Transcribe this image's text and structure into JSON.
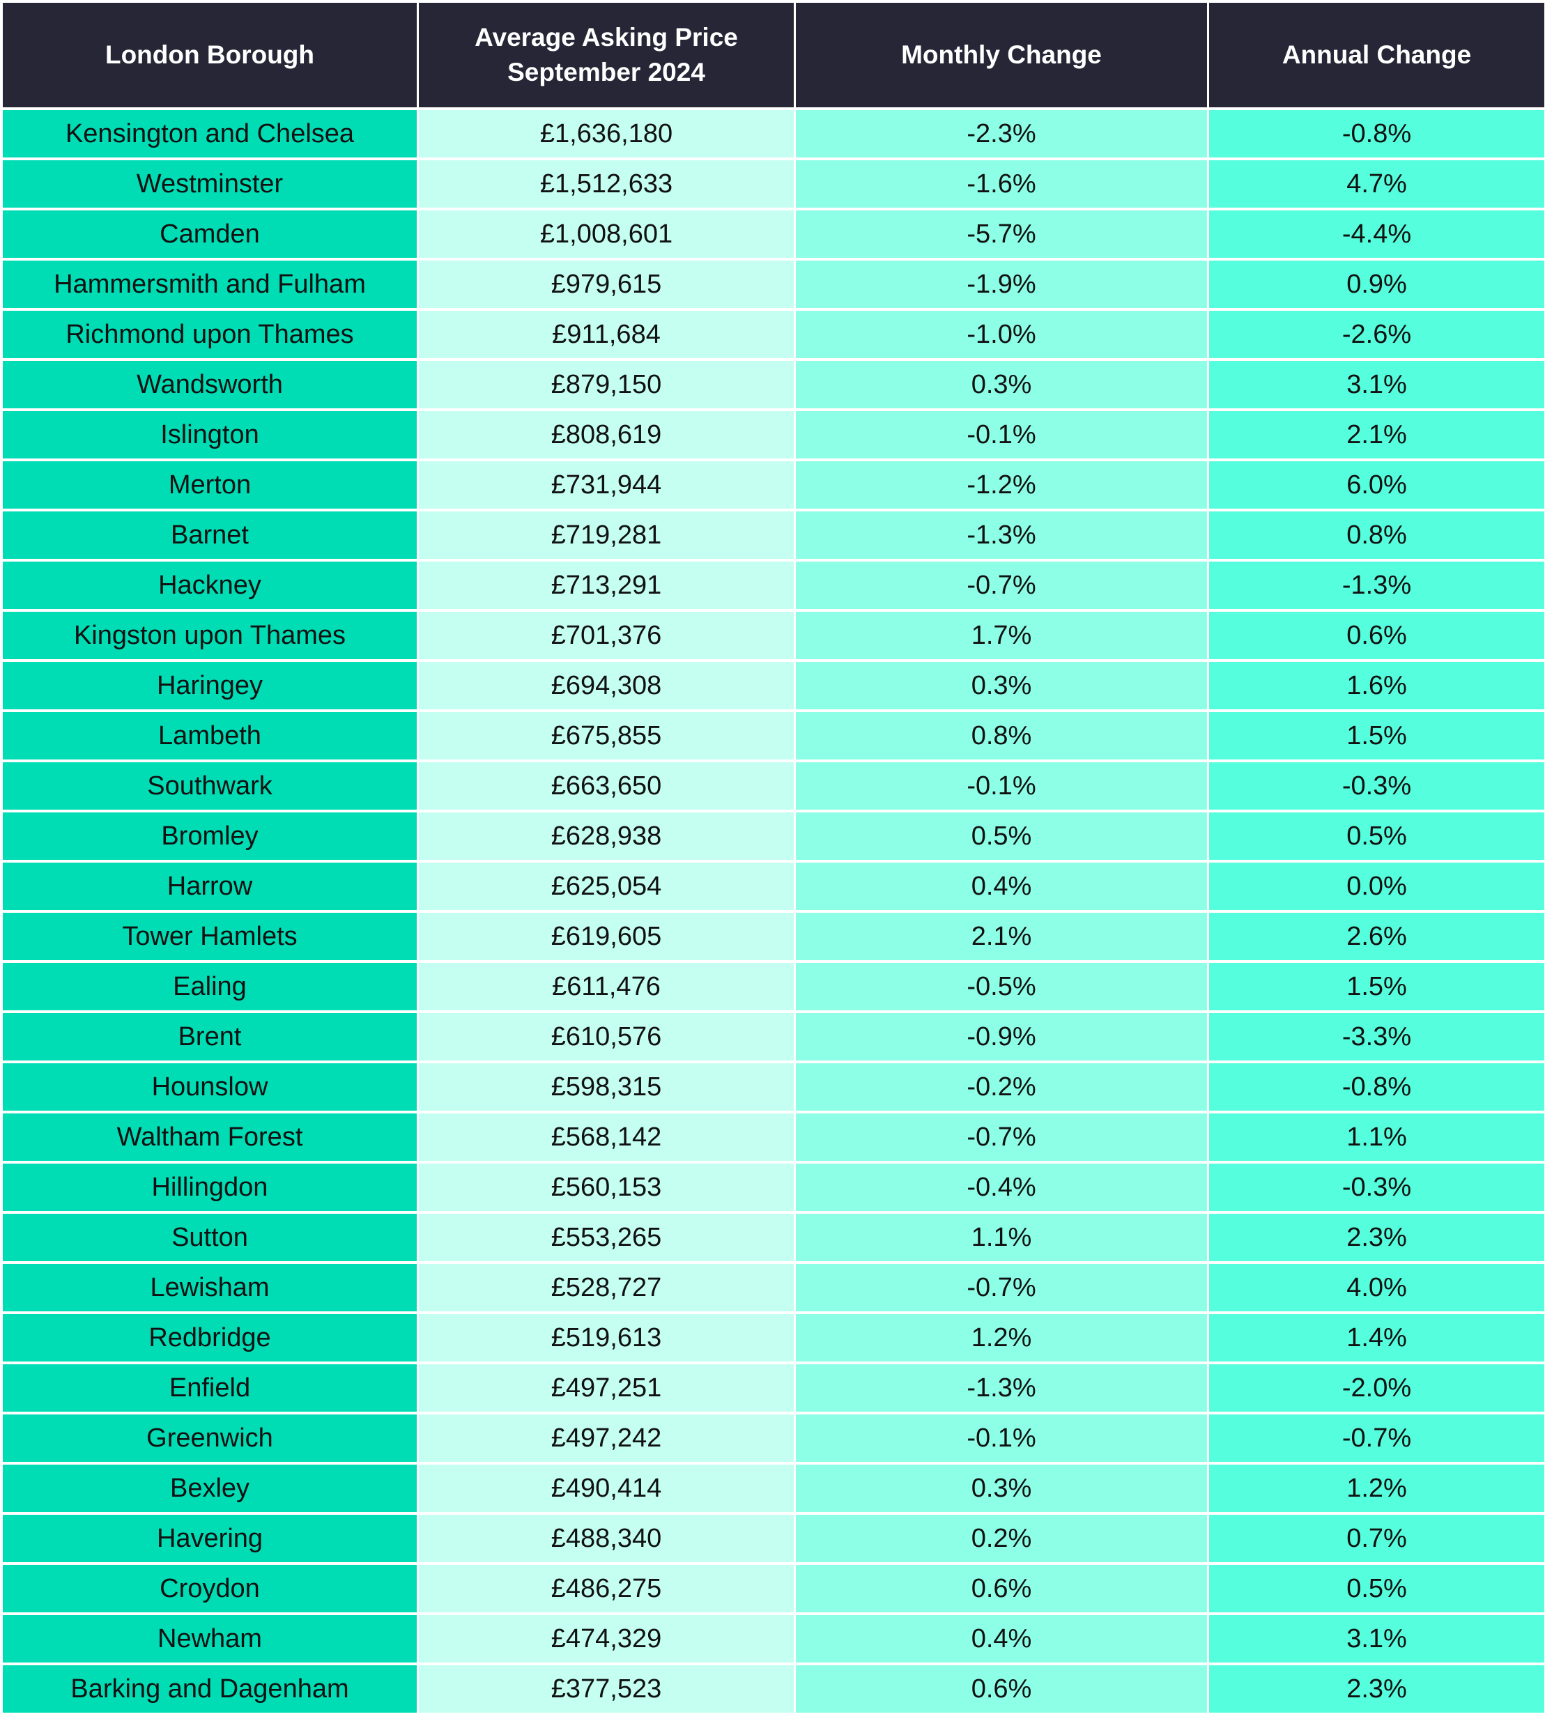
{
  "table": {
    "headers": [
      "London Borough",
      "Average Asking Price",
      "September 2024",
      "Monthly Change",
      "Annual Change"
    ],
    "colors": {
      "header_bg": "#262637",
      "borough_col": "#00DDB5",
      "price_col": "#C4FFF2",
      "monthly_col": "#8CFFE6",
      "annual_col": "#55FFDD"
    },
    "rows": [
      [
        "Kensington and Chelsea",
        "£1,636,180",
        "-2.3%",
        "-0.8%"
      ],
      [
        "Westminster",
        "£1,512,633",
        "-1.6%",
        "4.7%"
      ],
      [
        "Camden",
        "£1,008,601",
        "-5.7%",
        "-4.4%"
      ],
      [
        "Hammersmith and Fulham",
        "£979,615",
        "-1.9%",
        "0.9%"
      ],
      [
        "Richmond upon Thames",
        "£911,684",
        "-1.0%",
        "-2.6%"
      ],
      [
        "Wandsworth",
        "£879,150",
        "0.3%",
        "3.1%"
      ],
      [
        "Islington",
        "£808,619",
        "-0.1%",
        "2.1%"
      ],
      [
        "Merton",
        "£731,944",
        "-1.2%",
        "6.0%"
      ],
      [
        "Barnet",
        "£719,281",
        "-1.3%",
        "0.8%"
      ],
      [
        "Hackney",
        "£713,291",
        "-0.7%",
        "-1.3%"
      ],
      [
        "Kingston upon Thames",
        "£701,376",
        "1.7%",
        "0.6%"
      ],
      [
        "Haringey",
        "£694,308",
        "0.3%",
        "1.6%"
      ],
      [
        "Lambeth",
        "£675,855",
        "0.8%",
        "1.5%"
      ],
      [
        "Southwark",
        "£663,650",
        "-0.1%",
        "-0.3%"
      ],
      [
        "Bromley",
        "£628,938",
        "0.5%",
        "0.5%"
      ],
      [
        "Harrow",
        "£625,054",
        "0.4%",
        "0.0%"
      ],
      [
        "Tower Hamlets",
        "£619,605",
        "2.1%",
        "2.6%"
      ],
      [
        "Ealing",
        "£611,476",
        "-0.5%",
        "1.5%"
      ],
      [
        "Brent",
        "£610,576",
        "-0.9%",
        "-3.3%"
      ],
      [
        "Hounslow",
        "£598,315",
        "-0.2%",
        "-0.8%"
      ],
      [
        "Waltham Forest",
        "£568,142",
        "-0.7%",
        "1.1%"
      ],
      [
        "Hillingdon",
        "£560,153",
        "-0.4%",
        "-0.3%"
      ],
      [
        "Sutton",
        "£553,265",
        "1.1%",
        "2.3%"
      ],
      [
        "Lewisham",
        "£528,727",
        "-0.7%",
        "4.0%"
      ],
      [
        "Redbridge",
        "£519,613",
        "1.2%",
        "1.4%"
      ],
      [
        "Enfield",
        "£497,251",
        "-1.3%",
        "-2.0%"
      ],
      [
        "Greenwich",
        "£497,242",
        "-0.1%",
        "-0.7%"
      ],
      [
        "Bexley",
        "£490,414",
        "0.3%",
        "1.2%"
      ],
      [
        "Havering",
        "£488,340",
        "0.2%",
        "0.7%"
      ],
      [
        "Croydon",
        "£486,275",
        "0.6%",
        "0.5%"
      ],
      [
        "Newham",
        "£474,329",
        "0.4%",
        "3.1%"
      ],
      [
        "Barking and Dagenham",
        "£377,523",
        "0.6%",
        "2.3%"
      ]
    ]
  }
}
